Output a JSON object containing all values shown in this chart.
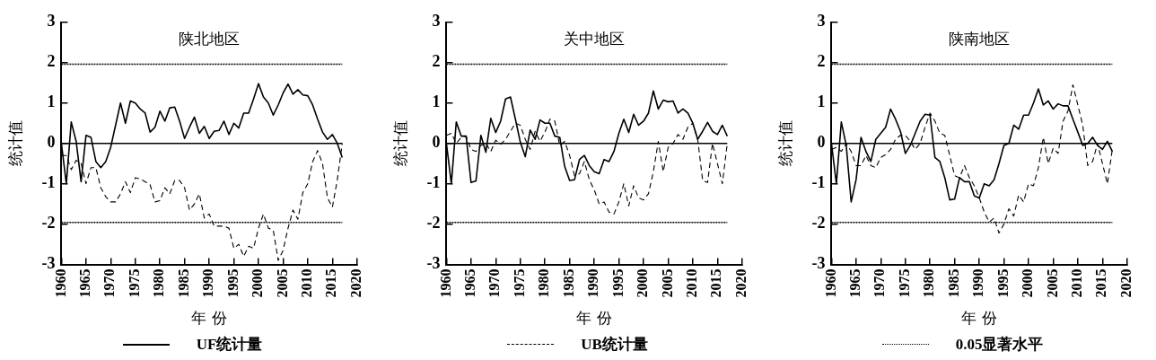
{
  "chart_data": [
    {
      "type": "line",
      "title": "陕北地区",
      "xlabel": "年 份",
      "ylabel": "统计值",
      "xlim": [
        1960,
        2020
      ],
      "xticks": [
        1960,
        1965,
        1970,
        1975,
        1980,
        1985,
        1990,
        1995,
        2000,
        2005,
        2010,
        2015,
        2020
      ],
      "ylim": [
        -3,
        3
      ],
      "yticks": [
        -3,
        -2,
        -1,
        0,
        1,
        2,
        3
      ],
      "grid": false,
      "legend": "bottom",
      "marker": "none",
      "x": [
        1960,
        1961,
        1962,
        1963,
        1964,
        1965,
        1966,
        1967,
        1968,
        1969,
        1970,
        1971,
        1972,
        1973,
        1974,
        1975,
        1976,
        1977,
        1978,
        1979,
        1980,
        1981,
        1982,
        1983,
        1984,
        1985,
        1986,
        1987,
        1988,
        1989,
        1990,
        1991,
        1992,
        1993,
        1994,
        1995,
        1996,
        1997,
        1998,
        1999,
        2000,
        2001,
        2002,
        2003,
        2004,
        2005,
        2006,
        2007,
        2008,
        2009,
        2010,
        2011,
        2012,
        2013,
        2014,
        2015,
        2016,
        2017
      ],
      "ref_lines": [
        {
          "axis": "y",
          "value": 0,
          "color": "#000000",
          "line_style": "solid"
        },
        {
          "axis": "y",
          "value": 1.96,
          "color": "#000000",
          "line_style": "dotted",
          "label": "0.05显著水平"
        },
        {
          "axis": "y",
          "value": -1.96,
          "color": "#000000",
          "line_style": "dotted"
        }
      ],
      "series": [
        {
          "name": "UF统计量",
          "color": "#000000",
          "line_style": "solid",
          "values": [
            0,
            -1.0,
            0.53,
            0.05,
            -0.95,
            0.2,
            0.15,
            -0.45,
            -0.6,
            -0.45,
            -0.1,
            0.45,
            1.0,
            0.5,
            1.05,
            1.0,
            0.85,
            0.75,
            0.28,
            0.4,
            0.8,
            0.55,
            0.88,
            0.9,
            0.55,
            0.12,
            0.4,
            0.65,
            0.25,
            0.42,
            0.12,
            0.3,
            0.32,
            0.55,
            0.22,
            0.5,
            0.38,
            0.75,
            0.75,
            1.1,
            1.48,
            1.15,
            1.0,
            0.7,
            0.95,
            1.25,
            1.47,
            1.22,
            1.33,
            1.2,
            1.18,
            0.95,
            0.6,
            0.28,
            0.1,
            0.22,
            0,
            -0.35
          ]
        },
        {
          "name": "UB统计量",
          "color": "#000000",
          "line_style": "dashed",
          "values": [
            -0.3,
            -0.3,
            -0.65,
            -0.42,
            -0.5,
            -1.0,
            -0.6,
            -0.6,
            -1.1,
            -1.32,
            -1.45,
            -1.45,
            -1.25,
            -0.95,
            -1.22,
            -0.85,
            -0.88,
            -0.95,
            -1.02,
            -1.45,
            -1.42,
            -1.1,
            -1.25,
            -0.92,
            -0.92,
            -1.1,
            -1.65,
            -1.5,
            -1.25,
            -1.85,
            -1.75,
            -2.05,
            -2.05,
            -2.05,
            -2.1,
            -2.6,
            -2.5,
            -2.8,
            -2.55,
            -2.6,
            -2.1,
            -1.75,
            -2.1,
            -2.15,
            -2.9,
            -2.65,
            -2.1,
            -1.65,
            -1.88,
            -1.22,
            -1.0,
            -0.45,
            -0.18,
            -0.5,
            -1.35,
            -1.58,
            -0.9,
            0
          ]
        }
      ]
    },
    {
      "type": "line",
      "title": "关中地区",
      "xlabel": "年 份",
      "ylabel": "统计值",
      "xlim": [
        1960,
        2020
      ],
      "xticks": [
        1960,
        1965,
        1970,
        1975,
        1980,
        1985,
        1990,
        1995,
        2000,
        2005,
        2010,
        2015,
        2020
      ],
      "ylim": [
        -3,
        3
      ],
      "yticks": [
        -3,
        -2,
        -1,
        0,
        1,
        2,
        3
      ],
      "grid": false,
      "marker": "none",
      "x": [
        1960,
        1961,
        1962,
        1963,
        1964,
        1965,
        1966,
        1967,
        1968,
        1969,
        1970,
        1971,
        1972,
        1973,
        1974,
        1975,
        1976,
        1977,
        1978,
        1979,
        1980,
        1981,
        1982,
        1983,
        1984,
        1985,
        1986,
        1987,
        1988,
        1989,
        1990,
        1991,
        1992,
        1993,
        1994,
        1995,
        1996,
        1997,
        1998,
        1999,
        2000,
        2001,
        2002,
        2003,
        2004,
        2005,
        2006,
        2007,
        2008,
        2009,
        2010,
        2011,
        2012,
        2013,
        2014,
        2015,
        2016,
        2017
      ],
      "ref_lines": [
        {
          "axis": "y",
          "value": 0,
          "color": "#000000",
          "line_style": "solid"
        },
        {
          "axis": "y",
          "value": 1.96,
          "color": "#000000",
          "line_style": "dotted"
        },
        {
          "axis": "y",
          "value": -1.96,
          "color": "#000000",
          "line_style": "dotted"
        }
      ],
      "series": [
        {
          "color": "#000000",
          "line_style": "solid",
          "values": [
            0,
            -1.0,
            0.53,
            0.18,
            0.18,
            -0.97,
            -0.93,
            0.2,
            -0.22,
            0.62,
            0.27,
            0.55,
            1.1,
            1.15,
            0.6,
            0.03,
            -0.33,
            0.33,
            0.1,
            0.58,
            0.5,
            0.5,
            0.18,
            0.15,
            -0.57,
            -0.92,
            -0.9,
            -0.4,
            -0.3,
            -0.55,
            -0.7,
            -0.75,
            -0.4,
            -0.45,
            -0.2,
            0.25,
            0.6,
            0.27,
            0.72,
            0.45,
            0.55,
            0.75,
            1.3,
            0.85,
            1.07,
            1.03,
            1.05,
            0.75,
            0.85,
            0.75,
            0.5,
            0.1,
            0.3,
            0.52,
            0.3,
            0.22,
            0.45,
            0.18
          ]
        },
        {
          "color": "#000000",
          "line_style": "dashed",
          "values": [
            0.2,
            0.25,
            0.0,
            0.15,
            0.18,
            -0.15,
            -0.2,
            -0.05,
            0.0,
            -0.2,
            0.08,
            -0.02,
            0.1,
            0.3,
            0.5,
            0.45,
            0.1,
            -0.15,
            0.3,
            0.05,
            0.28,
            0.6,
            0.55,
            -0.05,
            0.05,
            -0.3,
            -0.8,
            -0.75,
            -0.45,
            -0.9,
            -1.15,
            -1.5,
            -1.45,
            -1.7,
            -1.75,
            -1.45,
            -1.0,
            -1.55,
            -1.05,
            -1.35,
            -1.4,
            -1.25,
            -0.7,
            0.05,
            -0.7,
            -0.1,
            0.0,
            0.22,
            0.1,
            0.4,
            0.5,
            0.1,
            -0.92,
            -0.97,
            0.0,
            -0.5,
            -1.0,
            0
          ]
        }
      ]
    },
    {
      "type": "line",
      "title": "陕南地区",
      "xlabel": "年 份",
      "ylabel": "统计值",
      "xlim": [
        1960,
        2020
      ],
      "xticks": [
        1960,
        1965,
        1970,
        1975,
        1980,
        1985,
        1990,
        1995,
        2000,
        2005,
        2010,
        2015,
        2020
      ],
      "ylim": [
        -3,
        3
      ],
      "yticks": [
        -3,
        -2,
        -1,
        0,
        1,
        2,
        3
      ],
      "grid": false,
      "marker": "none",
      "x": [
        1960,
        1961,
        1962,
        1963,
        1964,
        1965,
        1966,
        1967,
        1968,
        1969,
        1970,
        1971,
        1972,
        1973,
        1974,
        1975,
        1976,
        1977,
        1978,
        1979,
        1980,
        1981,
        1982,
        1983,
        1984,
        1985,
        1986,
        1987,
        1988,
        1989,
        1990,
        1991,
        1992,
        1993,
        1994,
        1995,
        1996,
        1997,
        1998,
        1999,
        2000,
        2001,
        2002,
        2003,
        2004,
        2005,
        2006,
        2007,
        2008,
        2009,
        2010,
        2011,
        2012,
        2013,
        2014,
        2015,
        2016,
        2017
      ],
      "ref_lines": [
        {
          "axis": "y",
          "value": 0,
          "color": "#000000",
          "line_style": "solid"
        },
        {
          "axis": "y",
          "value": 1.96,
          "color": "#000000",
          "line_style": "dotted"
        },
        {
          "axis": "y",
          "value": -1.96,
          "color": "#000000",
          "line_style": "dotted"
        }
      ],
      "series": [
        {
          "color": "#000000",
          "line_style": "solid",
          "values": [
            0,
            -1.0,
            0.53,
            -0.05,
            -1.45,
            -0.9,
            0.15,
            -0.2,
            -0.45,
            0.1,
            0.25,
            0.4,
            0.85,
            0.6,
            0.3,
            -0.25,
            -0.05,
            0.25,
            0.55,
            0.72,
            0.7,
            -0.35,
            -0.45,
            -0.85,
            -1.4,
            -1.38,
            -0.85,
            -0.95,
            -0.95,
            -1.3,
            -1.35,
            -1.0,
            -1.05,
            -0.9,
            -0.5,
            -0.05,
            0.0,
            0.45,
            0.35,
            0.7,
            0.7,
            1.0,
            1.35,
            0.95,
            1.05,
            0.85,
            0.98,
            0.93,
            0.93,
            0.6,
            0.28,
            -0.05,
            0.0,
            0.15,
            -0.05,
            -0.15,
            0.05,
            -0.2
          ]
        },
        {
          "color": "#000000",
          "line_style": "dashed",
          "values": [
            -0.15,
            -0.1,
            -0.2,
            0.0,
            -0.2,
            -0.55,
            -0.55,
            -0.3,
            -0.55,
            -0.6,
            -0.35,
            -0.28,
            -0.15,
            0.1,
            0.2,
            0.2,
            0.05,
            -0.15,
            0.0,
            0.4,
            0.75,
            0.55,
            0.25,
            0.2,
            -0.3,
            -0.8,
            -0.85,
            -0.55,
            -0.85,
            -1.05,
            -1.35,
            -1.7,
            -1.95,
            -1.85,
            -2.22,
            -2.0,
            -1.62,
            -1.8,
            -1.28,
            -1.45,
            -1.0,
            -1.05,
            -0.6,
            0.15,
            -0.5,
            -0.12,
            -0.25,
            0.55,
            0.8,
            1.45,
            0.95,
            0.45,
            -0.55,
            -0.45,
            0.0,
            -0.5,
            -1.0,
            -0.15
          ]
        }
      ]
    }
  ]
}
